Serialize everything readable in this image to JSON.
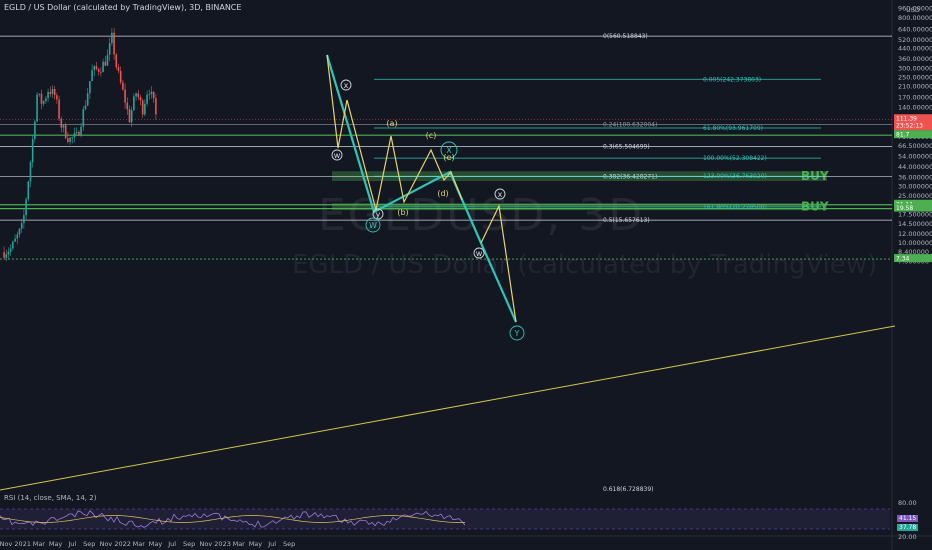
{
  "header": {
    "title": "EGLD / US Dollar (calculated by TradingView), 3D, BINANCE"
  },
  "watermark": {
    "symbol": "EGLDUSD, 3D",
    "description": "EGLD / US Dollar (calculated by TradingView)"
  },
  "rsi": {
    "label": "RSI (14, close, SMA, 14, 2)",
    "value_a": "41.15",
    "value_b": "37.78",
    "scale": [
      "80.00",
      "20.00"
    ]
  },
  "colors": {
    "background": "#131722",
    "up": "#26a69a",
    "down": "#ef5350",
    "wave_main": "#2ec4b6",
    "wave_sub": "#e8d36a",
    "buy": "#4caf50",
    "trend": "#d7c64a"
  },
  "chart_data": {
    "type": "candlestick",
    "title": "EGLD / US Dollar (calculated by TradingView), 3D, BINANCE",
    "y_scale": "log",
    "ylim": [
      7.3,
      960
    ],
    "x_ticks": [
      "Nov",
      "2021",
      "Mar",
      "May",
      "Jul",
      "Sep",
      "Nov",
      "2022",
      "Mar",
      "May",
      "Jul",
      "Sep",
      "Nov",
      "2023",
      "Mar",
      "May",
      "Jul",
      "Sep"
    ],
    "y_ticks": [
      "960.000000",
      "800.000000",
      "640.000000",
      "520.000000",
      "440.000000",
      "360.000000",
      "300.000000",
      "250.000000",
      "210.000000",
      "170.000000",
      "140.000000",
      "115.000000",
      "95.000000",
      "79.000000",
      "66.500000",
      "54.000000",
      "44.000000",
      "36.000000",
      "30.000000",
      "25.000000",
      "20.500000",
      "17.500000",
      "14.500000",
      "12.000000",
      "10.000000",
      "8.400000",
      "7.000000"
    ],
    "y_axis_unit": "USD",
    "price_tags": [
      {
        "label": "111.39",
        "sub": "23:52:13",
        "value": 111.39,
        "color": "#ef5350"
      },
      {
        "label": "81.7",
        "value": 81.7,
        "color": "#4caf50"
      },
      {
        "label": "21.11",
        "value": 21.11,
        "color": "#4caf50"
      },
      {
        "label": "19.58",
        "value": 19.58,
        "color": "#4caf50"
      },
      {
        "label": "7.34",
        "value": 7.34,
        "color": "#4caf50"
      }
    ],
    "fib_levels": [
      {
        "label": "0(560.518843)",
        "value": 560.5
      },
      {
        "label": "0.005(242.373803)",
        "value": 242.37
      },
      {
        "label": "0.24(100.632004)",
        "value": 100.63
      },
      {
        "label": "61.80%(93.961709)",
        "value": 93.96
      },
      {
        "label": "0.3(65.504699)",
        "value": 65.5
      },
      {
        "label": "100.00%(52.308422)",
        "value": 52.31
      },
      {
        "label": "0.382(36.428271)",
        "value": 36.43
      },
      {
        "label": "123.00%(36.763020)",
        "value": 36.76
      },
      {
        "label": "161.80%(20.278500)",
        "value": 20.28
      },
      {
        "label": "0.5(15.657613)",
        "value": 15.66
      },
      {
        "label": "0.618(6.728839)",
        "value": 6.73
      }
    ],
    "buy_zones": [
      {
        "label": "BUY",
        "low": 33.5,
        "high": 40.5
      },
      {
        "label": "BUY",
        "low": 19.0,
        "high": 21.8
      }
    ],
    "wave_labels": [
      "x",
      "w",
      "(a)",
      "(c)",
      "X",
      "(e)",
      "(b)",
      "(d)",
      "y",
      "W",
      "x",
      "w",
      "Y"
    ],
    "price_path": [
      {
        "date": "2020-10-25",
        "price": 8.4
      },
      {
        "date": "2020-11-20",
        "price": 9.0
      },
      {
        "date": "2021-01-01",
        "price": 14.0
      },
      {
        "date": "2021-02-01",
        "price": 55.0
      },
      {
        "date": "2021-02-22",
        "price": 180.0
      },
      {
        "date": "2021-03-15",
        "price": 150.0
      },
      {
        "date": "2021-04-05",
        "price": 200.0
      },
      {
        "date": "2021-04-30",
        "price": 175.0
      },
      {
        "date": "2021-05-20",
        "price": 100.0
      },
      {
        "date": "2021-06-20",
        "price": 75.0
      },
      {
        "date": "2021-07-20",
        "price": 80.0
      },
      {
        "date": "2021-08-20",
        "price": 160.0
      },
      {
        "date": "2021-09-10",
        "price": 280.0
      },
      {
        "date": "2021-10-10",
        "price": 300.0
      },
      {
        "date": "2021-11-05",
        "price": 360.0
      },
      {
        "date": "2021-11-23",
        "price": 545.0
      },
      {
        "date": "2021-12-10",
        "price": 300.0
      },
      {
        "date": "2022-01-10",
        "price": 160.0
      },
      {
        "date": "2022-01-25",
        "price": 110.0
      },
      {
        "date": "2022-02-20",
        "price": 190.0
      },
      {
        "date": "2022-03-15",
        "price": 135.0
      },
      {
        "date": "2022-04-05",
        "price": 210.0
      },
      {
        "date": "2022-04-25",
        "price": 150.0
      },
      {
        "date": "2022-05-05",
        "price": 111.0
      }
    ]
  }
}
